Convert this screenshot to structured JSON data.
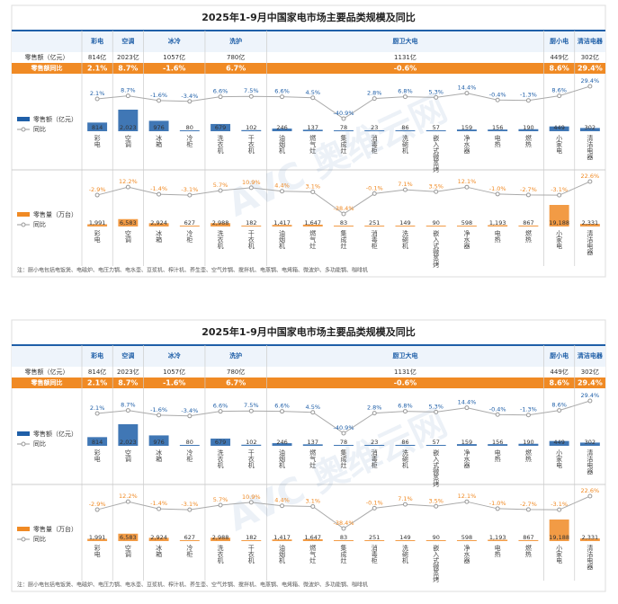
{
  "infographic": {
    "title": "2025年1-9月中国家电市场主要品类规模及同比",
    "row_labels": [
      "零售额（亿元）",
      "零售额同比"
    ],
    "groups": [
      {
        "name": "彩电",
        "span": 1,
        "sales": "814亿",
        "yoy": "2.1%"
      },
      {
        "name": "空调",
        "span": 1,
        "sales": "2023亿",
        "yoy": "8.7%"
      },
      {
        "name": "冰冷",
        "span": 2,
        "sales": "1057亿",
        "yoy": "-1.6%"
      },
      {
        "name": "洗护",
        "span": 2,
        "sales": "780亿",
        "yoy": "6.7%"
      },
      {
        "name": "厨卫大电",
        "span": 9,
        "sales": "1131亿",
        "yoy": "-0.6%"
      },
      {
        "name": "厨小电",
        "span": 1,
        "sales": "449亿",
        "yoy": "8.6%"
      },
      {
        "name": "清洁电器",
        "span": 1,
        "sales": "302亿",
        "yoy": "29.4%"
      }
    ],
    "categories": [
      "彩电",
      "空调",
      "冰箱",
      "冷柜",
      "洗衣机",
      "干衣机",
      "油烟机",
      "燃气灶",
      "集成灶",
      "消毒柜",
      "洗碗机",
      "嵌入式微蒸烤",
      "净水器",
      "电热",
      "燃热",
      "小家电",
      "清洁电器"
    ],
    "retail": {
      "legend": "零售额（亿元）",
      "yoy_legend": "同比",
      "color": "#1f5fa8",
      "values": [
        814,
        2023,
        976,
        80,
        679,
        102,
        246,
        137,
        78,
        23,
        86,
        57,
        159,
        156,
        190,
        449,
        302
      ],
      "value_labels": [
        "814",
        "2,023",
        "976",
        "80",
        "679",
        "102",
        "246",
        "137",
        "78",
        "23",
        "86",
        "57",
        "159",
        "156",
        "190",
        "449",
        "302"
      ],
      "yoy": [
        2.1,
        8.7,
        -1.6,
        -3.4,
        6.6,
        7.5,
        6.6,
        4.5,
        -40.9,
        2.8,
        6.8,
        5.3,
        14.4,
        -0.4,
        -1.3,
        8.6,
        29.4
      ],
      "yoy_labels": [
        "2.1%",
        "8.7%",
        "-1.6%",
        "-3.4%",
        "6.6%",
        "7.5%",
        "6.6%",
        "4.5%",
        "-40.9%",
        "2.8%",
        "6.8%",
        "5.3%",
        "14.4%",
        "-0.4%",
        "-1.3%",
        "8.6%",
        "29.4%"
      ]
    },
    "volume": {
      "legend": "零售量（万台）",
      "yoy_legend": "同比",
      "color": "#f08a24",
      "values": [
        1991,
        6583,
        2924,
        627,
        2988,
        182,
        1417,
        1647,
        83,
        251,
        149,
        90,
        598,
        1193,
        867,
        19188,
        2331
      ],
      "value_labels": [
        "1,991",
        "6,583",
        "2,924",
        "627",
        "2,988",
        "182",
        "1,417",
        "1,647",
        "83",
        "251",
        "149",
        "90",
        "598",
        "1,193",
        "867",
        "19,188",
        "2,331"
      ],
      "yoy": [
        -2.9,
        12.2,
        -1.4,
        -3.1,
        5.7,
        10.9,
        4.4,
        3.1,
        -38.4,
        -0.1,
        7.1,
        3.5,
        12.1,
        -1.0,
        -2.7,
        -3.1,
        22.6
      ],
      "yoy_labels": [
        "-2.9%",
        "12.2%",
        "-1.4%",
        "-3.1%",
        "5.7%",
        "10.9%",
        "4.4%",
        "3.1%",
        "-38.4%",
        "-0.1%",
        "7.1%",
        "3.5%",
        "12.1%",
        "-1.0%",
        "-2.7%",
        "-3.1%",
        "22.6%"
      ]
    },
    "footnote": "注：厨小电包括电饭煲、电磁炉、电压力锅、电水壶、豆浆机、榨汁机、养生壶、空气炸锅、搅拌机、电蒸锅、电烤箱、微波炉、多功能锅、咖啡机",
    "watermark": "AVC 奥维云网"
  }
}
